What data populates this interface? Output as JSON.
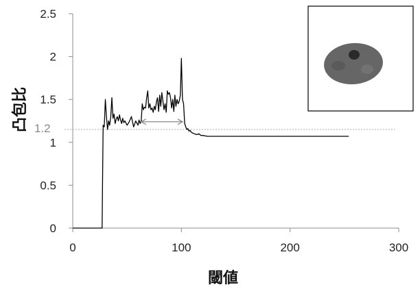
{
  "chart_data": {
    "type": "line",
    "xlabel": "閾値",
    "ylabel": "凸包比",
    "xlim": [
      0,
      300
    ],
    "ylim": [
      0,
      2.5
    ],
    "x_ticks": [
      "0",
      "100",
      "200",
      "300"
    ],
    "y_ticks": [
      "0",
      "0.5",
      "1",
      "1.5",
      "2",
      "2.5"
    ],
    "reference_line": {
      "y": 1.15,
      "label": "1.2",
      "style": "dotted",
      "color": "#aaaaaa"
    },
    "interval_arrow": {
      "x_start": 63,
      "x_end": 101,
      "y": 1.24,
      "color": "#888888"
    },
    "inset_image": "nucleus-cell-image",
    "series": [
      {
        "color": "#000000",
        "x": [
          0,
          27,
          27.5,
          28,
          29,
          30,
          31,
          32,
          33,
          34,
          35,
          36,
          37,
          38,
          39,
          40,
          41,
          42,
          43,
          44,
          45,
          46,
          47,
          48,
          50,
          52,
          54,
          56,
          58,
          60,
          61,
          62,
          63,
          64,
          65,
          66,
          67,
          68,
          69,
          70,
          71,
          72,
          73,
          74,
          75,
          76,
          77,
          78,
          79,
          80,
          81,
          82,
          83,
          84,
          85,
          86,
          87,
          88,
          89,
          90,
          91,
          92,
          93,
          94,
          95,
          96,
          97,
          98,
          99,
          100,
          101,
          102,
          103,
          104,
          105,
          106,
          107,
          108,
          109,
          110,
          112,
          114,
          116,
          118,
          120,
          124,
          128,
          135,
          150,
          175,
          200,
          230,
          254
        ],
        "y": [
          0,
          0,
          0.6,
          1.2,
          1.18,
          1.5,
          1.3,
          1.15,
          1.25,
          1.2,
          1.3,
          1.52,
          1.28,
          1.33,
          1.22,
          1.27,
          1.3,
          1.25,
          1.32,
          1.26,
          1.22,
          1.28,
          1.23,
          1.25,
          1.2,
          1.24,
          1.3,
          1.18,
          1.25,
          1.2,
          1.26,
          1.22,
          1.25,
          1.45,
          1.38,
          1.41,
          1.4,
          1.52,
          1.6,
          1.4,
          1.45,
          1.38,
          1.4,
          1.35,
          1.42,
          1.38,
          1.47,
          1.52,
          1.36,
          1.55,
          1.42,
          1.58,
          1.48,
          1.38,
          1.45,
          1.35,
          1.6,
          1.56,
          1.58,
          1.52,
          1.4,
          1.5,
          1.36,
          1.55,
          1.42,
          1.5,
          1.45,
          1.48,
          1.55,
          1.98,
          1.5,
          1.45,
          1.22,
          1.18,
          1.15,
          1.16,
          1.13,
          1.14,
          1.12,
          1.11,
          1.1,
          1.09,
          1.1,
          1.08,
          1.08,
          1.07,
          1.07,
          1.07,
          1.07,
          1.07,
          1.07,
          1.07,
          1.07
        ]
      }
    ]
  }
}
